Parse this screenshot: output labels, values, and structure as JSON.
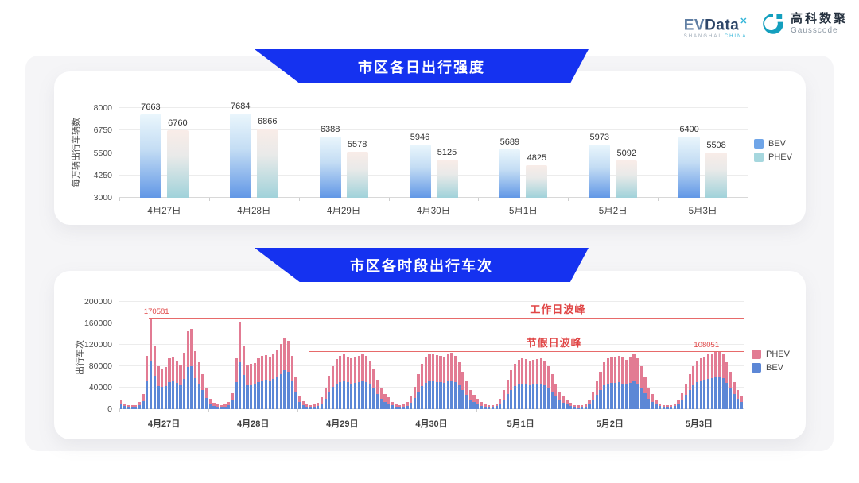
{
  "header": {
    "evdata": {
      "ev": "EV",
      "data": "Data",
      "sup": "✕",
      "sub1": "SHANGHAI",
      "sub2": "CHINA"
    },
    "gausscode": {
      "cn": "高科数聚",
      "en": "Gausscode"
    }
  },
  "colors": {
    "banner_blue": "#1532f0",
    "bev_legend": "#6fa5e8",
    "phev_legend": "#a6d7de",
    "stack_bev": "#5c87d6",
    "stack_phev": "#e27b93",
    "annotation_red": "#e04545"
  },
  "chart_data": [
    {
      "type": "bar",
      "title": "市区各日出行强度",
      "xlabel": "",
      "ylabel": "每万辆出行车辆数",
      "ylim": [
        3000,
        8000
      ],
      "yticks": [
        3000,
        4250,
        5500,
        6750,
        8000
      ],
      "grid": true,
      "legend_position": "right",
      "legend": [
        "BEV",
        "PHEV"
      ],
      "categories": [
        "4月27日",
        "4月28日",
        "4月29日",
        "4月30日",
        "5月1日",
        "5月2日",
        "5月3日"
      ],
      "series": [
        {
          "name": "BEV",
          "values": [
            7663,
            7684,
            6388,
            5946,
            5689,
            5973,
            6400
          ]
        },
        {
          "name": "PHEV",
          "values": [
            6760,
            6866,
            5578,
            5125,
            4825,
            5092,
            5508
          ]
        }
      ]
    },
    {
      "type": "bar",
      "stacked": true,
      "title": "市区各时段出行车次",
      "xlabel": "",
      "ylabel": "出行车次",
      "ylim": [
        0,
        200000
      ],
      "yticks": [
        0,
        40000,
        80000,
        120000,
        160000,
        200000
      ],
      "grid": true,
      "legend_position": "right",
      "legend": [
        "PHEV",
        "BEV"
      ],
      "bars_per_day": 24,
      "categories": [
        "4月27日",
        "4月28日",
        "4月29日",
        "4月30日",
        "5月1日",
        "5月2日",
        "5月3日"
      ],
      "series": [
        {
          "name": "BEV",
          "values_by_day": [
            [
              9000,
              6000,
              4500,
              4000,
              4500,
              7000,
              15000,
              54000,
              91000,
              62000,
              43000,
              41000,
              43000,
              51000,
              52000,
              49000,
              44000,
              57000,
              78000,
              80000,
              58000,
              48000,
              35000,
              21000
            ],
            [
              11000,
              6500,
              5000,
              4300,
              5000,
              7500,
              16000,
              51000,
              88000,
              63000,
              44000,
              45000,
              46000,
              51000,
              54000,
              55000,
              52000,
              56000,
              59000,
              65000,
              72000,
              69000,
              54000,
              32000
            ],
            [
              13000,
              8000,
              5000,
              4000,
              4500,
              6000,
              11000,
              20000,
              31000,
              41000,
              47000,
              51000,
              52000,
              50000,
              48000,
              49000,
              50000,
              53000,
              51000,
              46000,
              38000,
              28000,
              19000,
              14000
            ],
            [
              11000,
              7000,
              4500,
              4000,
              4500,
              6500,
              12000,
              21000,
              33000,
              43000,
              49000,
              52000,
              53000,
              51000,
              50000,
              49000,
              52000,
              53000,
              51000,
              45000,
              36000,
              26000,
              18000,
              13000
            ],
            [
              10000,
              6500,
              4500,
              4000,
              4000,
              5500,
              10000,
              18000,
              28000,
              36000,
              43000,
              46000,
              48000,
              47000,
              45000,
              46000,
              47000,
              48000,
              45000,
              40000,
              33000,
              24000,
              17000,
              12000
            ],
            [
              9000,
              6000,
              4000,
              3500,
              4000,
              5000,
              9000,
              17000,
              26000,
              35000,
              44000,
              48000,
              49000,
              49000,
              50000,
              48000,
              46000,
              49000,
              52000,
              48000,
              40000,
              30000,
              20000,
              14000
            ],
            [
              9000,
              6000,
              4500,
              4000,
              4500,
              5500,
              9500,
              17000,
              27000,
              36000,
              45000,
              50000,
              53000,
              55000,
              57000,
              58000,
              59000,
              61000,
              58000,
              49000,
              39000,
              28000,
              20000,
              14000
            ]
          ]
        },
        {
          "name": "PHEV",
          "values_by_day": [
            [
              7000,
              5000,
              3500,
              3000,
              3500,
              6000,
              13000,
              46000,
              79581,
              57000,
              37000,
              35000,
              36000,
              44000,
              45000,
              41000,
              38000,
              48000,
              67000,
              70000,
              50000,
              40000,
              30000,
              17000
            ],
            [
              9000,
              5500,
              4000,
              3700,
              4000,
              6500,
              14000,
              44000,
              75000,
              54000,
              38000,
              39000,
              40000,
              44000,
              46000,
              46000,
              44000,
              48000,
              51000,
              56000,
              62000,
              59000,
              46000,
              28000
            ],
            [
              12000,
              7000,
              5000,
              4000,
              4500,
              6000,
              11000,
              20000,
              31000,
              39000,
              46000,
              49000,
              51000,
              48000,
              47000,
              48000,
              49000,
              51000,
              49000,
              44000,
              37000,
              27000,
              19000,
              14000
            ],
            [
              11000,
              7000,
              4500,
              4000,
              4500,
              6500,
              12000,
              21000,
              32000,
              42000,
              48000,
              51000,
              51000,
              50000,
              49000,
              49000,
              51000,
              52000,
              49000,
              43000,
              34000,
              26000,
              18000,
              13000
            ],
            [
              10000,
              6500,
              4500,
              4000,
              4000,
              5500,
              10000,
              17000,
              27000,
              36000,
              42000,
              46000,
              47000,
              46000,
              45000,
              46000,
              47000,
              47000,
              45000,
              40000,
              32000,
              24000,
              16000,
              12000
            ],
            [
              9000,
              6000,
              4000,
              3500,
              4000,
              5000,
              9000,
              16000,
              26000,
              35000,
              44000,
              47000,
              48000,
              49000,
              50000,
              48000,
              46000,
              48000,
              51000,
              47000,
              40000,
              30000,
              20000,
              14000
            ],
            [
              7000,
              5000,
              3500,
              3000,
              3500,
              4500,
              7500,
              13000,
              21000,
              29000,
              35000,
              40000,
              42000,
              43000,
              45000,
              46000,
              47000,
              47051,
              45000,
              39000,
              31000,
              22000,
              15000,
              11000
            ]
          ]
        }
      ],
      "annotations": [
        {
          "id": "workday-peak",
          "label": "工作日波峰",
          "value": 170581,
          "value_label": "170581",
          "line_start_index": 8,
          "value_pos_index": 10,
          "name_pos_index": 118
        },
        {
          "id": "holiday-peak",
          "label": "节假日波峰",
          "value": 108051,
          "value_label": "108051",
          "line_start_index": 51,
          "value_pos_index": 158,
          "name_pos_index": 117
        }
      ]
    }
  ]
}
